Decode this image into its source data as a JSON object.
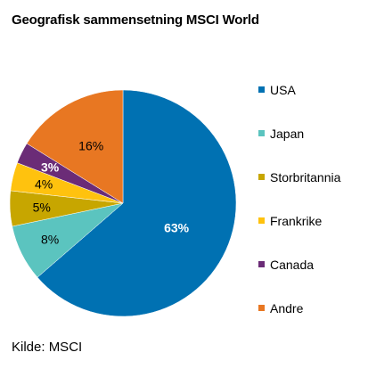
{
  "chart_data": {
    "type": "pie",
    "title": "Geografisk sammensetning MSCI World",
    "source": "Kilde: MSCI",
    "legend_position": "right",
    "categories": [
      "USA",
      "Japan",
      "Storbritannia",
      "Frankrike",
      "Canada",
      "Andre"
    ],
    "values": [
      63,
      8,
      5,
      4,
      3,
      16
    ],
    "data_labels": [
      "63%",
      "8%",
      "5%",
      "4%",
      "3%",
      "16%"
    ],
    "colors": [
      "#0071b2",
      "#5bc4bf",
      "#c7a600",
      "#ffc20e",
      "#6b2c77",
      "#e87722"
    ],
    "label_colors": [
      "#ffffff",
      "#000000",
      "#000000",
      "#000000",
      "#ffffff",
      "#000000"
    ]
  }
}
